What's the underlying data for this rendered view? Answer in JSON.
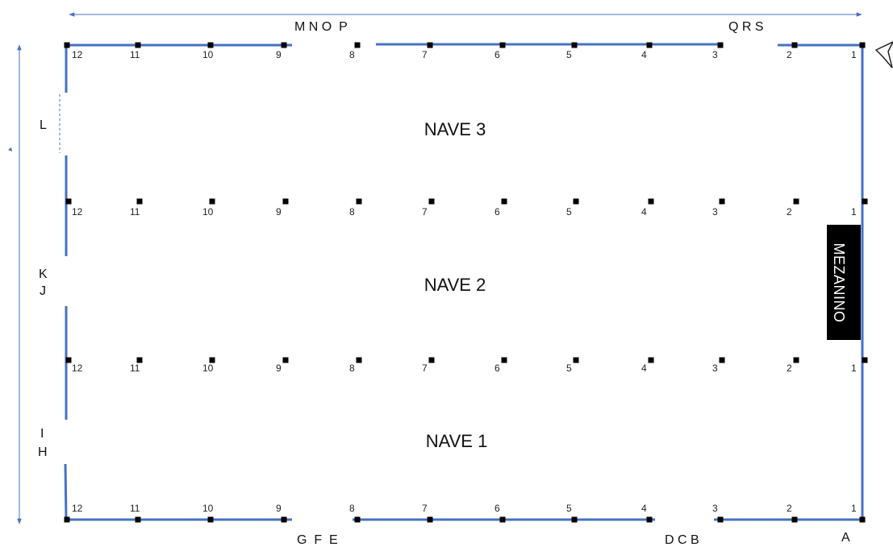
{
  "door_labels": {
    "top_mnop": "M N O  P",
    "top_qrs": "Q R S",
    "left_l": "L",
    "left_k": "K",
    "left_j": "J",
    "left_i": "I",
    "left_h": "H",
    "bottom_gfe": "G  F  E",
    "bottom_dcb": "D C B",
    "bottom_a": "A"
  },
  "naves": {
    "nave3": "NAVE 3",
    "nave2": "NAVE 2",
    "nave1": "NAVE 1"
  },
  "mezanino": "MEZANINO",
  "column_labels": [
    "1",
    "2",
    "3",
    "4",
    "5",
    "6",
    "7",
    "8",
    "9",
    "10",
    "11",
    "12"
  ],
  "colors": {
    "wall": "#4472c4",
    "column": "#000000",
    "arrow": "#4472c4",
    "mezanino_bg": "#000000"
  }
}
